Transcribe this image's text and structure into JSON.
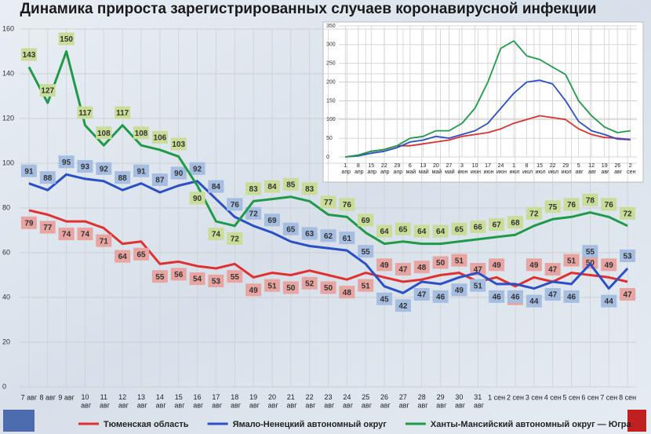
{
  "chart_data": [
    {
      "type": "line",
      "title": "Динамика прироста зарегистрированных случаев коронавирусной инфекции",
      "categories": [
        "7 авг",
        "8 авг",
        "9 авг",
        "10 авг",
        "11 авг",
        "12 авг",
        "13 авг",
        "14 авг",
        "15 авг",
        "16 авг",
        "17 авг",
        "18 авг",
        "19 авг",
        "20 авг",
        "21 авг",
        "22 авг",
        "23 авг",
        "24 авг",
        "25 авг",
        "26 авг",
        "27 авг",
        "28 авг",
        "29 авг",
        "30 авг",
        "31 авг",
        "1 сен",
        "2 сен",
        "3 сен",
        "4 сен",
        "5 сен",
        "6 сен",
        "7 сен",
        "8 сен"
      ],
      "series": [
        {
          "name": "Тюменская область",
          "color": "#e03030",
          "label_color": "#e8a4a0",
          "values": [
            79,
            77,
            74,
            74,
            71,
            64,
            65,
            55,
            56,
            54,
            53,
            55,
            49,
            51,
            50,
            52,
            50,
            48,
            51,
            49,
            47,
            48,
            50,
            51,
            47,
            49,
            45,
            49,
            47,
            51,
            50,
            49,
            47
          ]
        },
        {
          "name": "Ямало-Ненецкий автономный округ",
          "color": "#2a4fc8",
          "label_color": "#a4bde0",
          "values": [
            91,
            88,
            95,
            93,
            92,
            88,
            91,
            87,
            90,
            92,
            84,
            76,
            72,
            69,
            65,
            63,
            62,
            61,
            55,
            45,
            42,
            47,
            46,
            49,
            51,
            46,
            46,
            44,
            47,
            46,
            55,
            44,
            53
          ]
        },
        {
          "name": "Ханты-Мансийский автономный округ — Югра",
          "color": "#1f9a48",
          "label_color": "#c9dc98",
          "values": [
            143,
            127,
            150,
            117,
            108,
            117,
            108,
            106,
            103,
            90,
            74,
            72,
            83,
            84,
            85,
            83,
            77,
            76,
            69,
            64,
            65,
            64,
            64,
            65,
            66,
            67,
            68,
            72,
            75,
            76,
            78,
            76,
            72
          ]
        }
      ],
      "ylim": [
        0,
        160
      ],
      "yticks": [
        0,
        20,
        40,
        60,
        80,
        100,
        120,
        140,
        160
      ],
      "grid": true
    },
    {
      "type": "line",
      "categories": [
        "1 апр",
        "8 апр",
        "15 апр",
        "22 апр",
        "29 апр",
        "6 май",
        "13 май",
        "20 май",
        "27 май",
        "3 июн",
        "10 июн",
        "17 июн",
        "24 июн",
        "1 июл",
        "8 июл",
        "15 июл",
        "22 июл",
        "29 июл",
        "5 авг",
        "12 авг",
        "19 авг",
        "26 авг",
        "2 сен"
      ],
      "series": [
        {
          "color": "#e03030",
          "values": [
            0,
            5,
            15,
            20,
            30,
            30,
            35,
            40,
            45,
            55,
            60,
            65,
            75,
            90,
            100,
            110,
            105,
            100,
            75,
            60,
            52,
            50,
            47
          ]
        },
        {
          "color": "#2a4fc8",
          "values": [
            0,
            3,
            10,
            15,
            25,
            40,
            45,
            55,
            50,
            60,
            70,
            90,
            130,
            170,
            200,
            205,
            195,
            150,
            95,
            70,
            60,
            48,
            46
          ]
        },
        {
          "color": "#1f9a48",
          "values": [
            0,
            5,
            15,
            20,
            30,
            50,
            55,
            70,
            70,
            90,
            130,
            200,
            290,
            310,
            270,
            260,
            240,
            220,
            150,
            110,
            80,
            65,
            70
          ]
        }
      ],
      "ylim": [
        0,
        350
      ],
      "yticks": [
        0,
        50,
        100,
        150,
        200,
        250,
        300,
        350
      ],
      "grid": true
    }
  ]
}
